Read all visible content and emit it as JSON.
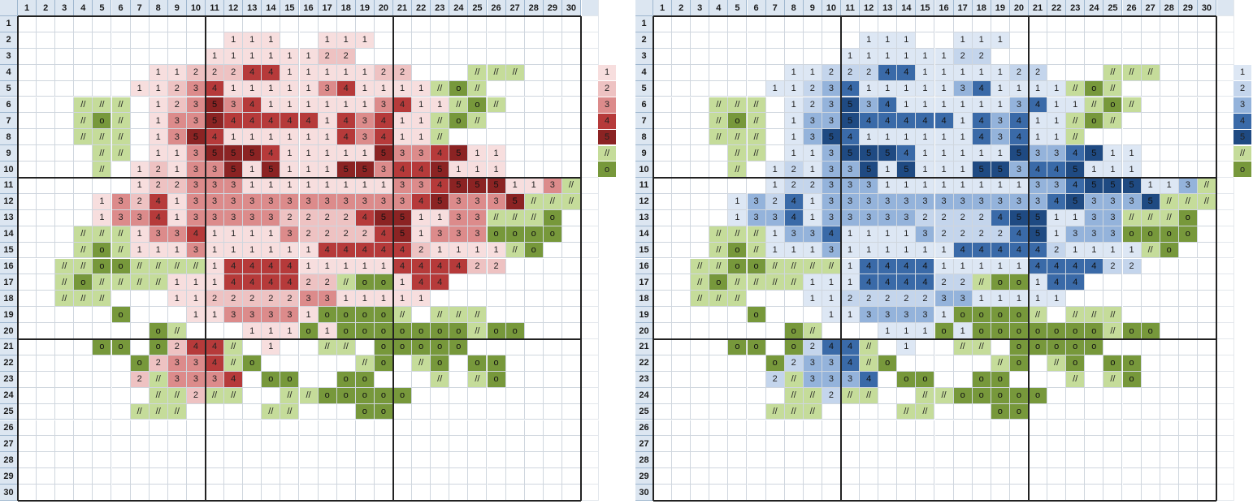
{
  "header_numbers": [
    "1",
    "2",
    "3",
    "4",
    "5",
    "6",
    "7",
    "8",
    "9",
    "10",
    "11",
    "12",
    "13",
    "14",
    "15",
    "16",
    "17",
    "18",
    "19",
    "20",
    "21",
    "22",
    "23",
    "24",
    "25",
    "26",
    "27",
    "28",
    "29",
    "30"
  ],
  "palettes": {
    "red": {
      "1": "#f7dede",
      "2": "#eec2c2",
      "3": "#dc8b8b",
      "4": "#b63a3a",
      "5": "#8b2323",
      "l": "#c5dc9a",
      "o": "#77983b"
    },
    "blue": {
      "1": "#dde7f4",
      "2": "#c4d5ec",
      "3": "#94b3db",
      "4": "#3a6aa8",
      "5": "#1f4a82",
      "l": "#c5dc9a",
      "o": "#77983b"
    }
  },
  "symbols": {
    "1": "1",
    "2": "2",
    "3": "3",
    "4": "4",
    "5": "5",
    "l": "//",
    "o": "o"
  },
  "legend": [
    "1",
    "2",
    "3",
    "4",
    "5",
    "l",
    "o"
  ],
  "pattern_rows": [
    "..............................",
    "...........111..111...........",
    "..........11111122............",
    ".......11222441111122...lll...",
    "......1123411111341111lol.....",
    "...lll.1235341111113411lol....",
    "...lol.133544444143411lol.....",
    "...lll.135411111143411l.......",
    "....ll.1135554111115334511....",
    "....l.12133515111553445111....",
    "......12233311111111334555113ll",
    "....13241333333333333453335lll",
    "....133413333322224551133lllo.",
    "...lll1334111132222451333oooo.",
    "...lol11131111114444421111lo..",
    "..lloollll1444411111444422....",
    "..lollll111444422loo144.......",
    "..lll...11222223311111........",
    ".....o...1133331ooool.lll.....",
    ".......ol...111o1oooooooloo...",
    "....oo.o244l.1..ll.ooooo......",
    "......o2334lo.....lo.lo.oo....",
    "......2l3334.oo..oo...l.lo....",
    ".......ll2ll..llooooo.........",
    "......lll....ll...oo..........",
    "..............................",
    "..............................",
    "..............................",
    "..............................",
    ".............................."
  ]
}
